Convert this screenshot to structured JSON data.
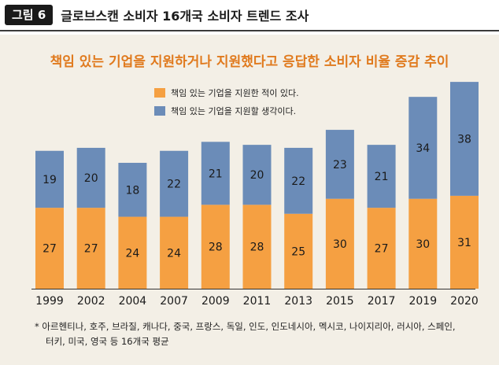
{
  "header": {
    "badge": "그림 6",
    "title": "글로브스캔 소비자 16개국 소비자 트렌드 조사"
  },
  "chart_data": {
    "type": "bar",
    "stacked": true,
    "title": "책임 있는 기업을 지원하거나 지원했다고 응답한 소비자 비율 증감 추이",
    "categories": [
      "1999",
      "2002",
      "2004",
      "2007",
      "2009",
      "2011",
      "2013",
      "2015",
      "2017",
      "2019",
      "2020"
    ],
    "series": [
      {
        "name": "책임 있는 기업을 지원한 적이 있다.",
        "color": "#f5a042",
        "values": [
          27,
          27,
          24,
          24,
          28,
          28,
          25,
          30,
          27,
          30,
          31
        ]
      },
      {
        "name": "책임 있는 기업을 지원할 생각이다.",
        "color": "#6b8cb8",
        "values": [
          19,
          20,
          18,
          22,
          21,
          20,
          22,
          23,
          21,
          34,
          38
        ]
      }
    ],
    "legend_position": "top-center",
    "grid": false
  },
  "footnote": {
    "line1": "* 아르헨티나, 호주, 브라질, 캐나다, 중국, 프랑스, 독일, 인도, 인도네시아, 멕시코, 나이지리아, 러시아, 스페인,",
    "line2": "터키, 미국, 영국 등 16개국 평균"
  }
}
